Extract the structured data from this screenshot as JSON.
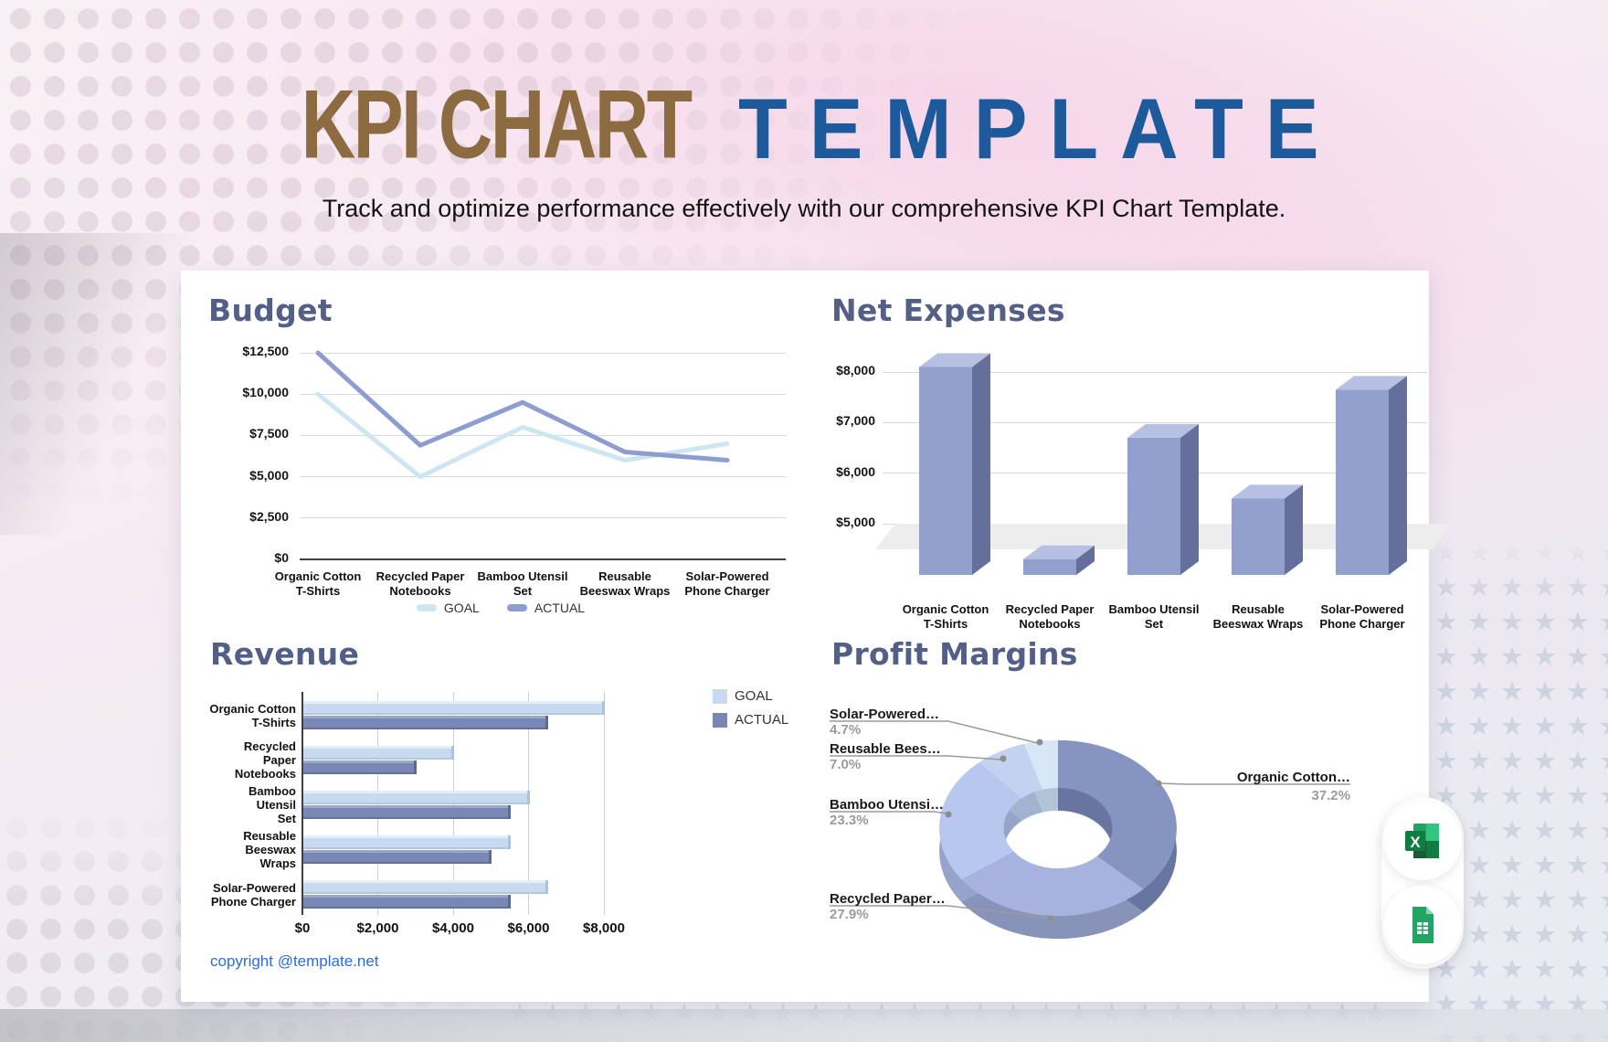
{
  "header": {
    "title_primary": "KPI CHART",
    "title_secondary": "TEMPLATE",
    "subtitle": "Track and optimize performance effectively with our comprehensive KPI Chart Template."
  },
  "card": {
    "copyright": "copyright @template.net"
  },
  "export_icons": {
    "excel_letter": "X",
    "excel_name": "excel-icon",
    "sheets_name": "google-sheets-icon"
  },
  "colors": {
    "title_brown": "#8d6b40",
    "title_blue": "#1d5a9c",
    "panel_heading": "#535f87",
    "copyright_blue": "#2a6be0",
    "goal_line": "#cde6f2",
    "actual_line": "#8e9dd0",
    "goal_bar": "#c7daf0",
    "actual_bar": "#7887b3",
    "column_front": "#93a0ce",
    "column_top": "#b6c0e2",
    "column_side": "#656f9c"
  },
  "chart_data": [
    {
      "id": "budget",
      "type": "line",
      "title": "Budget",
      "categories": [
        "Organic Cotton T-Shirts",
        "Recycled Paper Notebooks",
        "Bamboo Utensil Set",
        "Reusable Beeswax Wraps",
        "Solar-Powered Phone Charger"
      ],
      "categories_display": [
        "Organic Cotton\nT-Shirts",
        "Recycled Paper\nNotebooks",
        "Bamboo Utensil\nSet",
        "Reusable\nBeeswax Wraps",
        "Solar-Powered\nPhone Charger"
      ],
      "series": [
        {
          "name": "GOAL",
          "color": "#cde6f2",
          "values": [
            10000,
            5000,
            8000,
            6000,
            7000
          ]
        },
        {
          "name": "ACTUAL",
          "color": "#8e9dd0",
          "values": [
            12500,
            6900,
            9500,
            6500,
            6000
          ]
        }
      ],
      "y_ticks": [
        {
          "label": "$0",
          "value": 0
        },
        {
          "label": "$2,500",
          "value": 2500
        },
        {
          "label": "$5,000",
          "value": 5000
        },
        {
          "label": "$7,500",
          "value": 7500
        },
        {
          "label": "$10,000",
          "value": 10000
        },
        {
          "label": "$12,500",
          "value": 12500
        }
      ],
      "ylim": [
        0,
        12500
      ],
      "grid": true,
      "legend_position": "bottom"
    },
    {
      "id": "net-expenses",
      "type": "bar",
      "subtype": "3d-column",
      "title": "Net Expenses",
      "categories": [
        "Organic Cotton T-Shirts",
        "Recycled Paper Notebooks",
        "Bamboo Utensil Set",
        "Reusable Beeswax Wraps",
        "Solar-Powered Phone Charger"
      ],
      "categories_display": [
        "Organic Cotton\nT-Shirts",
        "Recycled Paper\nNotebooks",
        "Bamboo Utensil\nSet",
        "Reusable\nBeeswax Wraps",
        "Solar-Powered\nPhone Charger"
      ],
      "values": [
        8100,
        4300,
        6700,
        5500,
        7650
      ],
      "y_ticks": [
        {
          "label": "$5,000",
          "value": 5000
        },
        {
          "label": "$6,000",
          "value": 6000
        },
        {
          "label": "$7,000",
          "value": 7000
        },
        {
          "label": "$8,000",
          "value": 8000
        }
      ],
      "ylim": [
        4000,
        8600
      ],
      "grid": true
    },
    {
      "id": "revenue",
      "type": "bar",
      "subtype": "horizontal-grouped-3d",
      "title": "Revenue",
      "categories": [
        "Organic Cotton T-Shirts",
        "Recycled Paper Notebooks",
        "Bamboo Utensil Set",
        "Reusable Beeswax Wraps",
        "Solar-Powered Phone Charger"
      ],
      "categories_display": [
        "Organic Cotton\nT-Shirts",
        "Recycled Paper\nNotebooks",
        "Bamboo Utensil\nSet",
        "Reusable\nBeeswax Wraps",
        "Solar-Powered\nPhone Charger"
      ],
      "series": [
        {
          "name": "GOAL",
          "color": "#c7daf0",
          "values": [
            8000,
            4000,
            6000,
            5500,
            6500
          ]
        },
        {
          "name": "ACTUAL",
          "color": "#7887b3",
          "values": [
            6500,
            3000,
            5500,
            5000,
            5500
          ]
        }
      ],
      "x_ticks": [
        {
          "label": "$0",
          "value": 0
        },
        {
          "label": "$2,000",
          "value": 2000
        },
        {
          "label": "$4,000",
          "value": 4000
        },
        {
          "label": "$6,000",
          "value": 6000
        },
        {
          "label": "$8,000",
          "value": 8000
        }
      ],
      "xlim": [
        0,
        8000
      ],
      "grid": true,
      "legend_position": "top-right"
    },
    {
      "id": "profit-margins",
      "type": "pie",
      "subtype": "3d-donut",
      "title": "Profit Margins",
      "donut": true,
      "start_angle_deg": 0,
      "direction": "clockwise",
      "slices": [
        {
          "label": "Organic Cotton…",
          "pct": 37.2,
          "pct_label": "37.2%",
          "color": "#8694c2",
          "depth_color": "#67759f"
        },
        {
          "label": "Recycled Paper…",
          "pct": 27.9,
          "pct_label": "27.9%",
          "color": "#a7b3de",
          "depth_color": "#8893ba"
        },
        {
          "label": "Bamboo Utensi…",
          "pct": 23.3,
          "pct_label": "23.3%",
          "color": "#b7c7ed",
          "depth_color": "#95a5ca"
        },
        {
          "label": "Reusable Bees…",
          "pct": 7.0,
          "pct_label": "7.0%",
          "color": "#c3d2f0",
          "depth_color": "#a2b3cf"
        },
        {
          "label": "Solar-Powered…",
          "pct": 4.7,
          "pct_label": "4.7%",
          "color": "#d8e7f5",
          "depth_color": "#b2c5d6"
        }
      ]
    }
  ]
}
